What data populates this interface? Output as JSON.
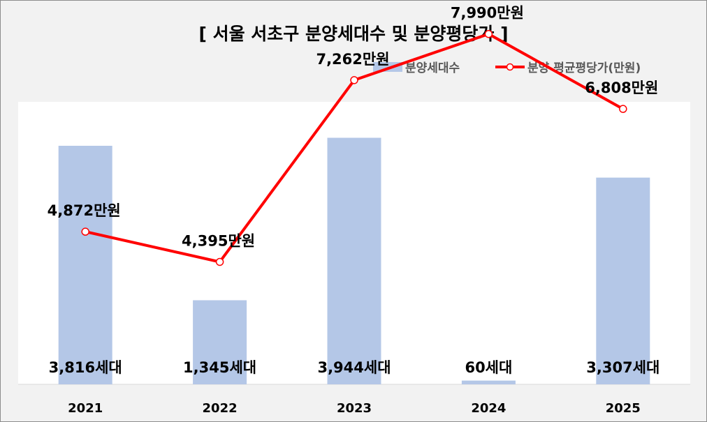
{
  "chart_data": {
    "type": "bar",
    "title": "[ 서울 서초구 분양세대수 및 분양평당가 ]",
    "categories": [
      "2021",
      "2022",
      "2023",
      "2024",
      "2025"
    ],
    "series": [
      {
        "name": "분양세대수",
        "type": "bar",
        "color": "#b4c7e7",
        "values": [
          3816,
          1345,
          3944,
          60,
          3307
        ],
        "labels": [
          "3,816세대",
          "1,345세대",
          "3,944세대",
          "60세대",
          "3,307세대"
        ]
      },
      {
        "name": "분양 평균평당가(만원)",
        "type": "line",
        "color": "#ff0000",
        "values": [
          4872,
          4395,
          7262,
          7990,
          6808
        ],
        "labels": [
          "4,872만원",
          "4,395만원",
          "7,262만원",
          "7,990만원",
          "6,808만원"
        ]
      }
    ],
    "legend": "top-right",
    "grid": false,
    "y_bar_range": [
      0,
      4000
    ],
    "y_line_range": [
      0,
      9000
    ]
  }
}
